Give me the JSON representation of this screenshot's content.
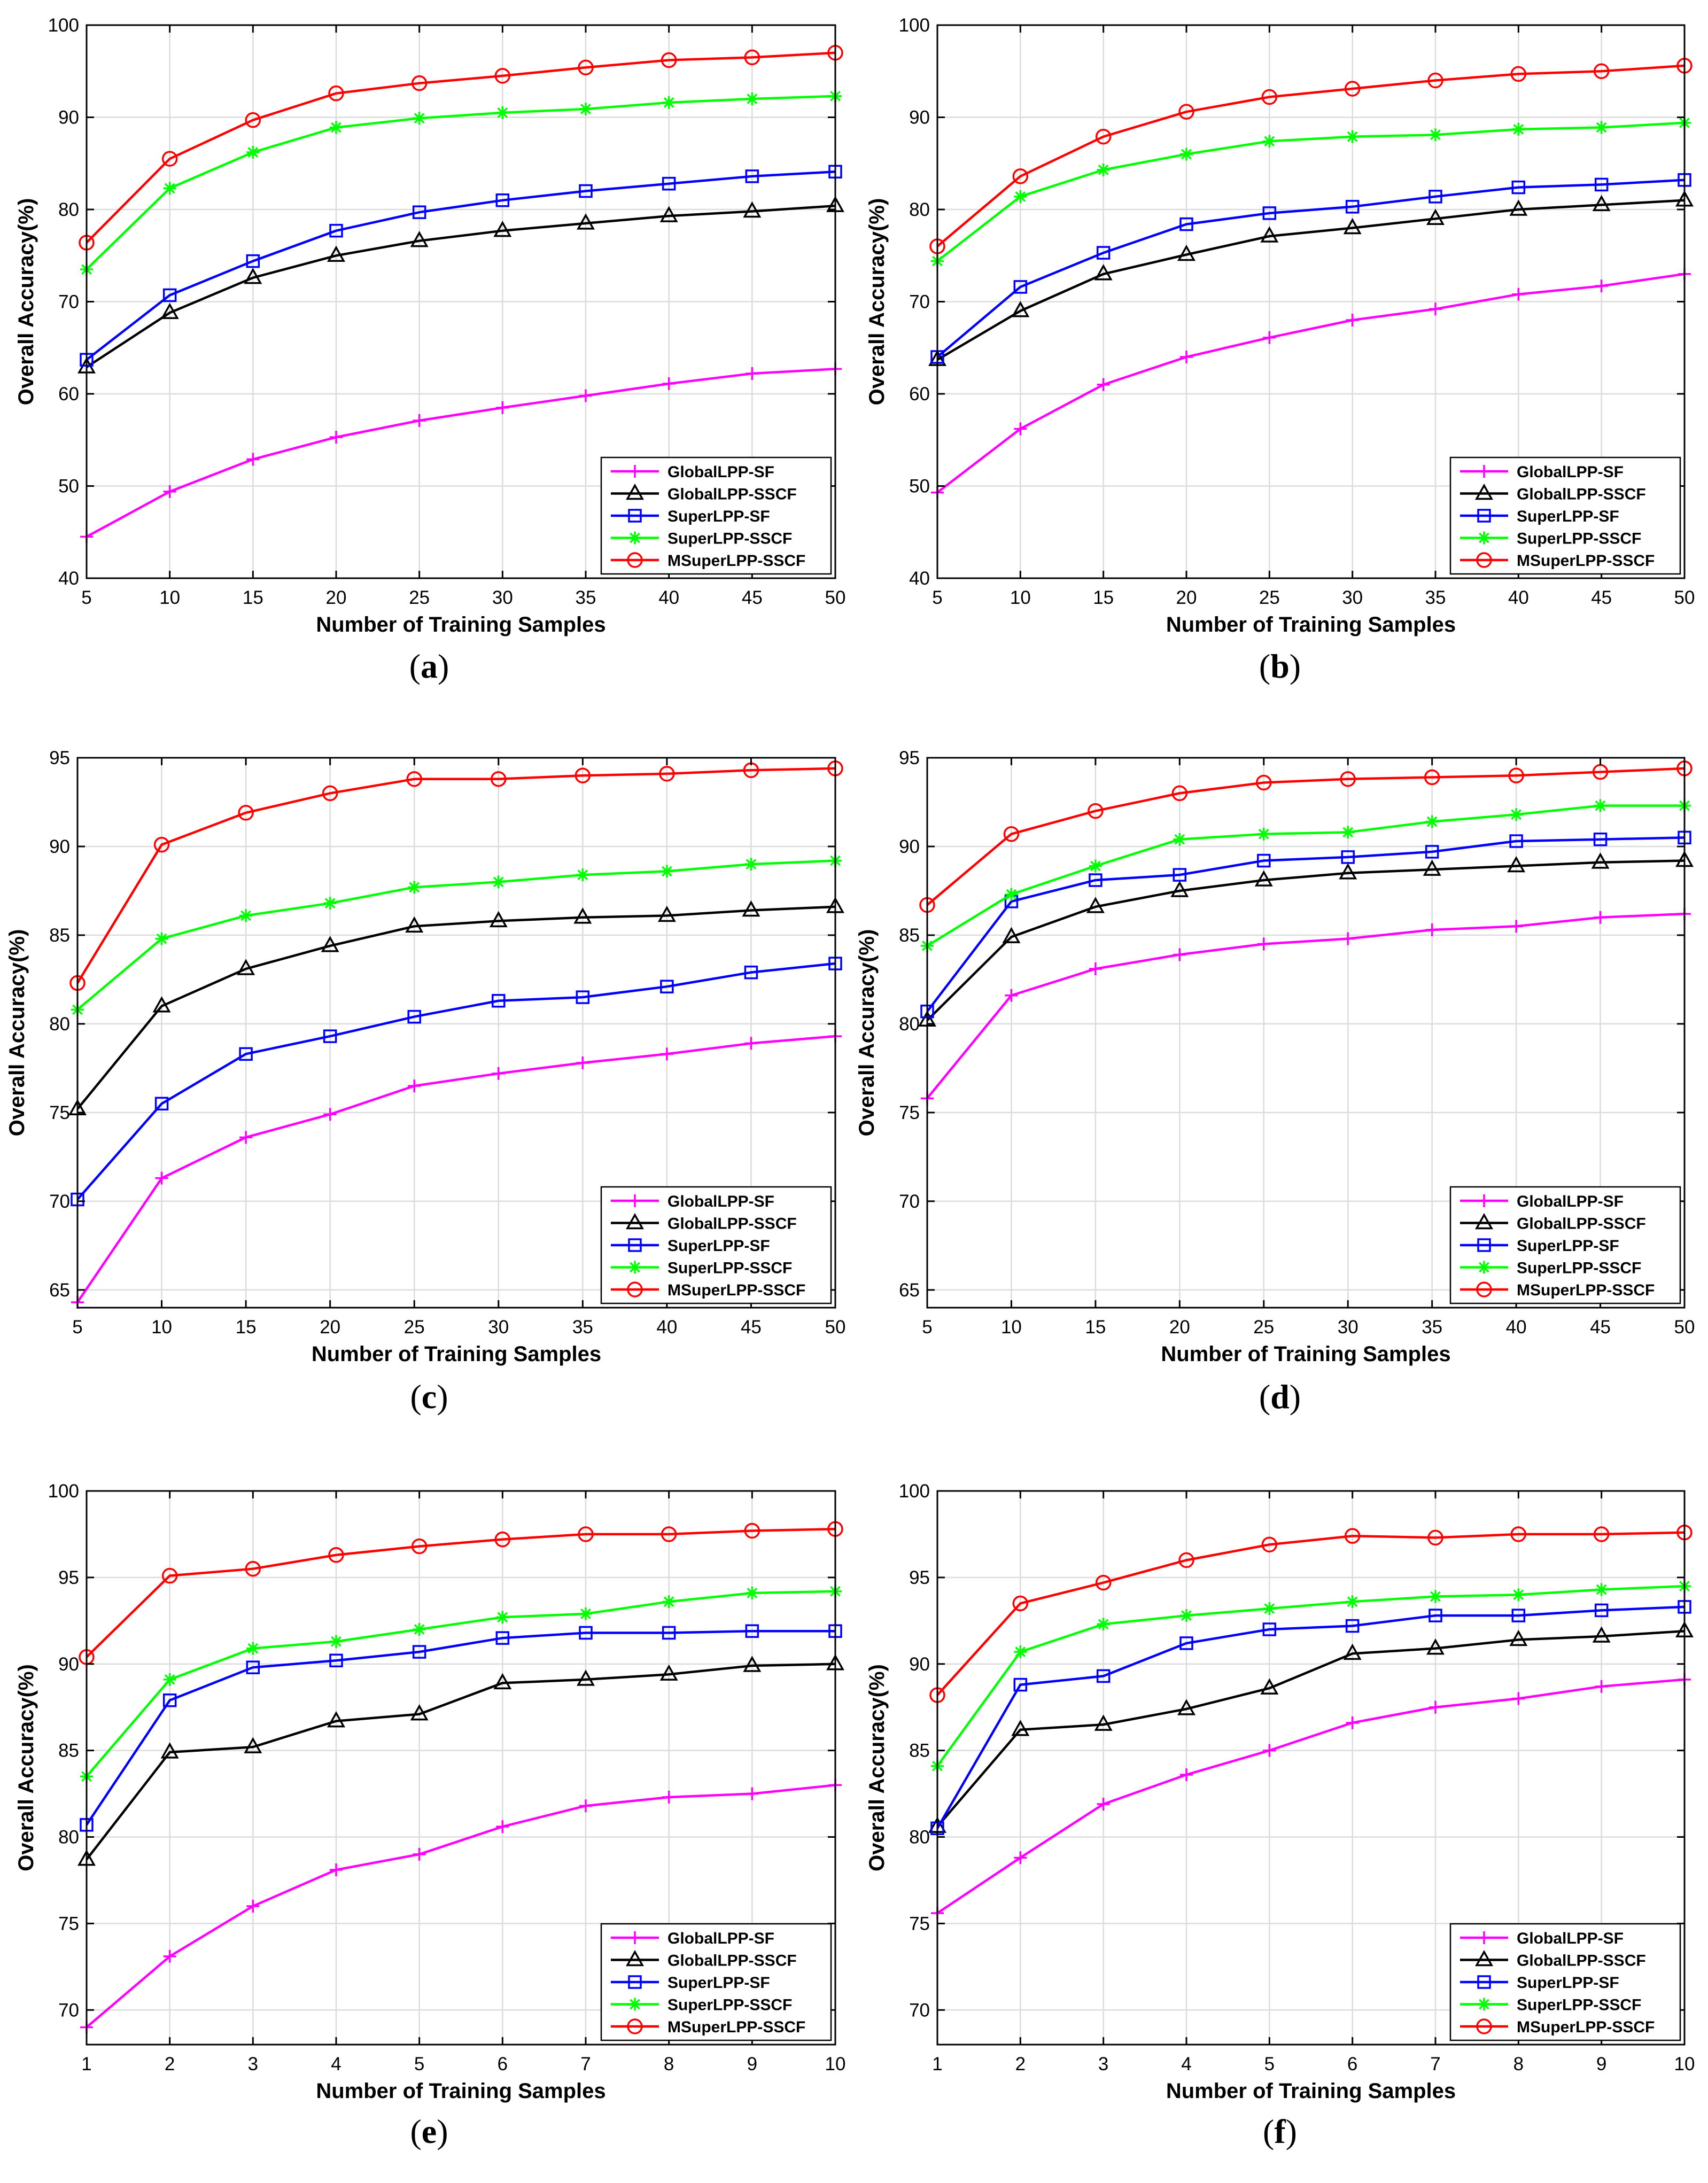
{
  "series_styles": [
    {
      "name": "GlobalLPP-SF",
      "color": "#ff00ff",
      "marker": "plus"
    },
    {
      "name": "GlobalLPP-SSCF",
      "color": "#000000",
      "marker": "triangle"
    },
    {
      "name": "SuperLPP-SF",
      "color": "#0000ff",
      "marker": "square"
    },
    {
      "name": "SuperLPP-SSCF",
      "color": "#00ff00",
      "marker": "asterisk"
    },
    {
      "name": "MSuperLPP-SSCF",
      "color": "#ff0000",
      "marker": "circle"
    }
  ],
  "chart_data": [
    {
      "type": "line",
      "caption": "a",
      "xlabel": "Number of Training Samples",
      "ylabel": "Overall Accuracy(%)",
      "x": [
        5,
        10,
        15,
        20,
        25,
        30,
        35,
        40,
        45,
        50
      ],
      "xlim": [
        5,
        50
      ],
      "ylim": [
        40,
        100
      ],
      "xticks": [
        5,
        10,
        15,
        20,
        25,
        30,
        35,
        40,
        45,
        50
      ],
      "yticks": [
        40,
        50,
        60,
        70,
        80,
        90,
        100
      ],
      "grid": true,
      "legend_position": "bottom-right",
      "series": [
        {
          "name": "GlobalLPP-SF",
          "values": [
            44.5,
            49.4,
            52.9,
            55.3,
            57.1,
            58.5,
            59.8,
            61.1,
            62.2,
            62.7
          ]
        },
        {
          "name": "GlobalLPP-SSCF",
          "values": [
            62.9,
            68.8,
            72.6,
            75.0,
            76.6,
            77.7,
            78.5,
            79.3,
            79.8,
            80.4
          ]
        },
        {
          "name": "SuperLPP-SF",
          "values": [
            63.7,
            70.7,
            74.4,
            77.7,
            79.7,
            81.0,
            82.0,
            82.8,
            83.6,
            84.1
          ]
        },
        {
          "name": "SuperLPP-SSCF",
          "values": [
            73.5,
            82.3,
            86.2,
            88.9,
            89.9,
            90.5,
            90.9,
            91.6,
            92.0,
            92.3
          ]
        },
        {
          "name": "MSuperLPP-SSCF",
          "values": [
            76.4,
            85.5,
            89.7,
            92.6,
            93.7,
            94.5,
            95.4,
            96.2,
            96.5,
            97.0
          ]
        }
      ]
    },
    {
      "type": "line",
      "caption": "b",
      "xlabel": "Number of Training Samples",
      "ylabel": "Overall Accuracy(%)",
      "x": [
        5,
        10,
        15,
        20,
        25,
        30,
        35,
        40,
        45,
        50
      ],
      "xlim": [
        5,
        50
      ],
      "ylim": [
        40,
        100
      ],
      "xticks": [
        5,
        10,
        15,
        20,
        25,
        30,
        35,
        40,
        45,
        50
      ],
      "yticks": [
        40,
        50,
        60,
        70,
        80,
        90,
        100
      ],
      "grid": true,
      "legend_position": "bottom-right",
      "series": [
        {
          "name": "GlobalLPP-SF",
          "values": [
            49.3,
            56.2,
            61.0,
            64.0,
            66.1,
            68.0,
            69.2,
            70.8,
            71.7,
            73.0
          ]
        },
        {
          "name": "GlobalLPP-SSCF",
          "values": [
            63.7,
            69.0,
            73.0,
            75.1,
            77.1,
            78.0,
            79.0,
            80.0,
            80.5,
            81.0
          ]
        },
        {
          "name": "SuperLPP-SF",
          "values": [
            64.0,
            71.6,
            75.3,
            78.4,
            79.6,
            80.3,
            81.4,
            82.4,
            82.7,
            83.2
          ]
        },
        {
          "name": "SuperLPP-SSCF",
          "values": [
            74.4,
            81.4,
            84.3,
            86.0,
            87.4,
            87.9,
            88.1,
            88.7,
            88.9,
            89.4
          ]
        },
        {
          "name": "MSuperLPP-SSCF",
          "values": [
            76.0,
            83.6,
            87.9,
            90.6,
            92.2,
            93.1,
            94.0,
            94.7,
            95.0,
            95.6
          ]
        }
      ]
    },
    {
      "type": "line",
      "caption": "c",
      "xlabel": "Number of Training Samples",
      "ylabel": "Overall Accuracy(%)",
      "x": [
        5,
        10,
        15,
        20,
        25,
        30,
        35,
        40,
        45,
        50
      ],
      "xlim": [
        5,
        50
      ],
      "ylim": [
        64,
        95
      ],
      "xticks": [
        5,
        10,
        15,
        20,
        25,
        30,
        35,
        40,
        45,
        50
      ],
      "yticks": [
        65,
        70,
        75,
        80,
        85,
        90,
        95
      ],
      "grid": true,
      "legend_position": "bottom-right",
      "series": [
        {
          "name": "GlobalLPP-SF",
          "values": [
            64.3,
            71.3,
            73.6,
            74.9,
            76.5,
            77.2,
            77.8,
            78.3,
            78.9,
            79.3
          ]
        },
        {
          "name": "GlobalLPP-SSCF",
          "values": [
            75.2,
            81.0,
            83.1,
            84.4,
            85.5,
            85.8,
            86.0,
            86.1,
            86.4,
            86.6
          ]
        },
        {
          "name": "SuperLPP-SF",
          "values": [
            70.1,
            75.5,
            78.3,
            79.3,
            80.4,
            81.3,
            81.5,
            82.1,
            82.9,
            83.4
          ]
        },
        {
          "name": "SuperLPP-SSCF",
          "values": [
            80.8,
            84.8,
            86.1,
            86.8,
            87.7,
            88.0,
            88.4,
            88.6,
            89.0,
            89.2
          ]
        },
        {
          "name": "MSuperLPP-SSCF",
          "values": [
            82.3,
            90.1,
            91.9,
            93.0,
            93.8,
            93.8,
            94.0,
            94.1,
            94.3,
            94.4
          ]
        }
      ]
    },
    {
      "type": "line",
      "caption": "d",
      "xlabel": "Number of Training Samples",
      "ylabel": "Overall Accuracy(%)",
      "x": [
        5,
        10,
        15,
        20,
        25,
        30,
        35,
        40,
        45,
        50
      ],
      "xlim": [
        5,
        50
      ],
      "ylim": [
        64,
        95
      ],
      "xticks": [
        5,
        10,
        15,
        20,
        25,
        30,
        35,
        40,
        45,
        50
      ],
      "yticks": [
        65,
        70,
        75,
        80,
        85,
        90,
        95
      ],
      "grid": true,
      "legend_position": "bottom-right",
      "series": [
        {
          "name": "GlobalLPP-SF",
          "values": [
            75.8,
            81.6,
            83.1,
            83.9,
            84.5,
            84.8,
            85.3,
            85.5,
            86.0,
            86.2
          ]
        },
        {
          "name": "GlobalLPP-SSCF",
          "values": [
            80.2,
            84.9,
            86.6,
            87.5,
            88.1,
            88.5,
            88.7,
            88.9,
            89.1,
            89.2
          ]
        },
        {
          "name": "SuperLPP-SF",
          "values": [
            80.7,
            86.9,
            88.1,
            88.4,
            89.2,
            89.4,
            89.7,
            90.3,
            90.4,
            90.5
          ]
        },
        {
          "name": "SuperLPP-SSCF",
          "values": [
            84.4,
            87.3,
            88.9,
            90.4,
            90.7,
            90.8,
            91.4,
            91.8,
            92.3,
            92.3
          ]
        },
        {
          "name": "MSuperLPP-SSCF",
          "values": [
            86.7,
            90.7,
            92.0,
            93.0,
            93.6,
            93.8,
            93.9,
            94.0,
            94.2,
            94.4
          ]
        }
      ]
    },
    {
      "type": "line",
      "caption": "e",
      "xlabel": "Number of Training Samples",
      "ylabel": "Overall Accuracy(%)",
      "x": [
        1,
        2,
        3,
        4,
        5,
        6,
        7,
        8,
        9,
        10
      ],
      "xlim": [
        1,
        10
      ],
      "ylim": [
        68,
        100
      ],
      "xticks": [
        1,
        2,
        3,
        4,
        5,
        6,
        7,
        8,
        9,
        10
      ],
      "yticks": [
        70,
        75,
        80,
        85,
        90,
        95,
        100
      ],
      "grid": true,
      "legend_position": "bottom-right",
      "series": [
        {
          "name": "GlobalLPP-SF",
          "values": [
            69.0,
            73.1,
            76.0,
            78.1,
            79.0,
            80.6,
            81.8,
            82.3,
            82.5,
            83.0
          ]
        },
        {
          "name": "GlobalLPP-SSCF",
          "values": [
            78.7,
            84.9,
            85.2,
            86.7,
            87.1,
            88.9,
            89.1,
            89.4,
            89.9,
            90.0
          ]
        },
        {
          "name": "SuperLPP-SF",
          "values": [
            80.7,
            87.9,
            89.8,
            90.2,
            90.7,
            91.5,
            91.8,
            91.8,
            91.9,
            91.9
          ]
        },
        {
          "name": "SuperLPP-SSCF",
          "values": [
            83.5,
            89.1,
            90.9,
            91.3,
            92.0,
            92.7,
            92.9,
            93.6,
            94.1,
            94.2
          ]
        },
        {
          "name": "MSuperLPP-SSCF",
          "values": [
            90.4,
            95.1,
            95.5,
            96.3,
            96.8,
            97.2,
            97.5,
            97.5,
            97.7,
            97.8
          ]
        }
      ]
    },
    {
      "type": "line",
      "caption": "f",
      "xlabel": "Number of Training Samples",
      "ylabel": "Overall Accuracy(%)",
      "x": [
        1,
        2,
        3,
        4,
        5,
        6,
        7,
        8,
        9,
        10
      ],
      "xlim": [
        1,
        10
      ],
      "ylim": [
        68,
        100
      ],
      "xticks": [
        1,
        2,
        3,
        4,
        5,
        6,
        7,
        8,
        9,
        10
      ],
      "yticks": [
        70,
        75,
        80,
        85,
        90,
        95,
        100
      ],
      "grid": true,
      "legend_position": "bottom-right",
      "series": [
        {
          "name": "GlobalLPP-SF",
          "values": [
            75.6,
            78.8,
            81.9,
            83.6,
            85.0,
            86.6,
            87.5,
            88.0,
            88.7,
            89.1
          ]
        },
        {
          "name": "GlobalLPP-SSCF",
          "values": [
            80.6,
            86.2,
            86.5,
            87.4,
            88.6,
            90.6,
            90.9,
            91.4,
            91.6,
            91.9
          ]
        },
        {
          "name": "SuperLPP-SF",
          "values": [
            80.5,
            88.8,
            89.3,
            91.2,
            92.0,
            92.2,
            92.8,
            92.8,
            93.1,
            93.3
          ]
        },
        {
          "name": "SuperLPP-SSCF",
          "values": [
            84.1,
            90.7,
            92.3,
            92.8,
            93.2,
            93.6,
            93.9,
            94.0,
            94.3,
            94.5
          ]
        },
        {
          "name": "MSuperLPP-SSCF",
          "values": [
            88.2,
            93.5,
            94.7,
            96.0,
            96.9,
            97.4,
            97.3,
            97.5,
            97.5,
            97.6
          ]
        }
      ]
    }
  ]
}
